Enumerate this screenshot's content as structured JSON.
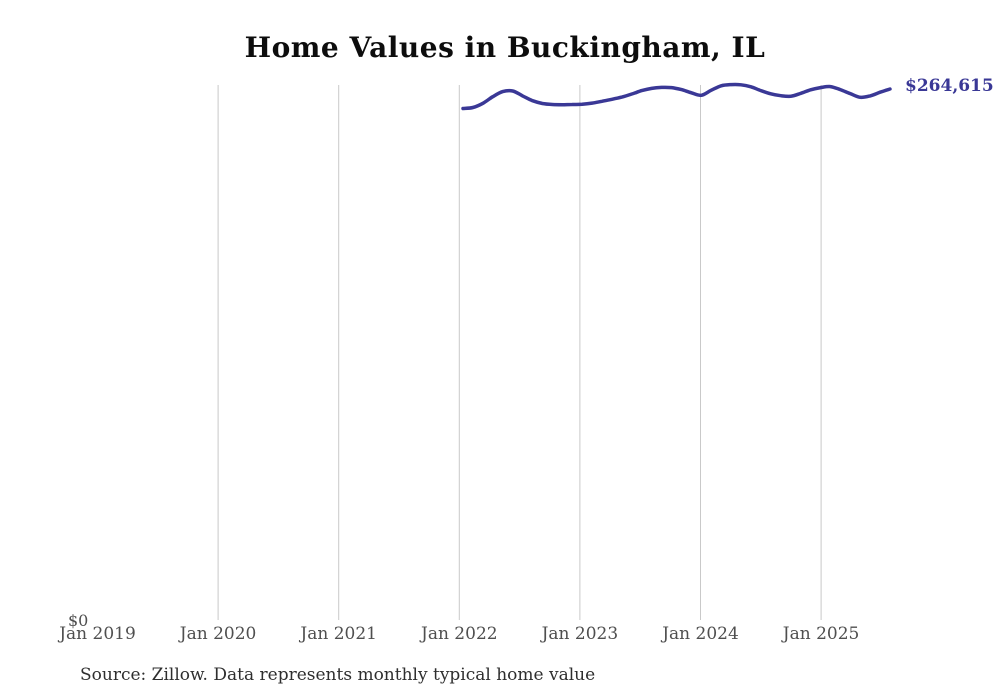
{
  "chart_data": {
    "type": "line",
    "title": "Home Values in Buckingham, IL",
    "source_note": "Source: Zillow. Data represents monthly typical home value",
    "x_tick_labels": [
      "Jan 2019",
      "Jan 2020",
      "Jan 2021",
      "Jan 2022",
      "Jan 2023",
      "Jan 2024",
      "Jan 2025"
    ],
    "y_zero_label": "$0",
    "end_value_label": "$264,615",
    "latest_value": 264615,
    "ylim": [
      0,
      268000
    ],
    "grid": "vertical-year-lines",
    "legend": "none",
    "colors": {
      "line": "#3a3896",
      "end_label": "#3a3896",
      "gridline": "#c9c9c9",
      "tick_label": "#4f4f4f",
      "title": "#0d0d0d",
      "source": "#2e2e2e"
    },
    "series": [
      {
        "name": "Monthly typical home value",
        "start_month": "Jan 2022",
        "end_month": "Aug 2025",
        "frequency": "monthly",
        "values": [
          254900,
          255400,
          257500,
          260800,
          263300,
          263600,
          261200,
          258800,
          257400,
          256900,
          256800,
          256900,
          257000,
          257600,
          258500,
          259500,
          260600,
          262100,
          263800,
          264900,
          265400,
          265300,
          264300,
          262700,
          261500,
          264000,
          266200,
          266800,
          266700,
          265700,
          263800,
          262200,
          261300,
          261000,
          262400,
          264200,
          265300,
          265800,
          264300,
          262300,
          260500,
          261200,
          263000,
          264615
        ]
      }
    ]
  }
}
